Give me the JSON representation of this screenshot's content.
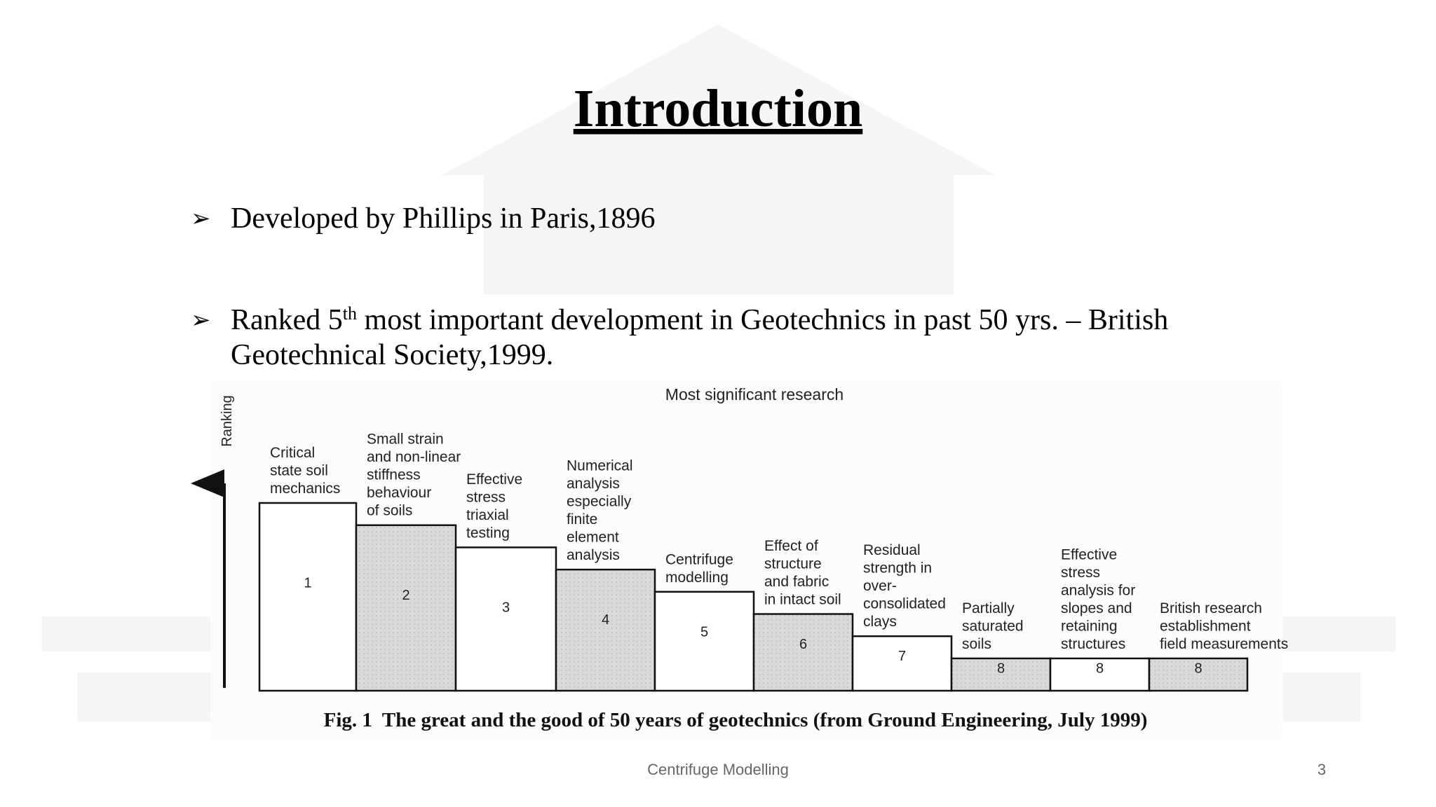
{
  "slide": {
    "title": "Introduction",
    "bullets": [
      {
        "text": "Developed by Phillips in Paris,1896"
      },
      {
        "before": "Ranked 5",
        "sup": "th",
        "after": " most important development in Geotechnics in past 50 yrs. – British",
        "continuation": "Geotechnical Society,1999."
      }
    ],
    "figure": {
      "title": "Most significant research",
      "axis_label": "Ranking",
      "bars": [
        {
          "label": [
            "Critical",
            "state soil",
            "mechanics"
          ],
          "rank": 1
        },
        {
          "label": [
            "Small strain",
            "and non-linear",
            "stiffness",
            "behaviour",
            "of soils"
          ],
          "rank": 2
        },
        {
          "label": [
            "Effective",
            "stress",
            "triaxial",
            "testing"
          ],
          "rank": 3
        },
        {
          "label": [
            "Numerical",
            "analysis",
            "especially",
            "finite",
            "element",
            "analysis"
          ],
          "rank": 4
        },
        {
          "label": [
            "Centrifuge",
            "modelling"
          ],
          "rank": 5
        },
        {
          "label": [
            "Effect of",
            "structure",
            "and fabric",
            "in intact soil"
          ],
          "rank": 6
        },
        {
          "label": [
            "Residual",
            "strength in",
            "over-",
            "consolidated",
            "clays"
          ],
          "rank": 7
        },
        {
          "label": [
            "Partially",
            "saturated",
            "soils"
          ],
          "rank": 8
        },
        {
          "label": [
            "Effective",
            "stress",
            "analysis for",
            "slopes and",
            "retaining",
            "structures"
          ],
          "rank": 8
        },
        {
          "label": [
            "British research",
            "establishment",
            "field measurements"
          ],
          "rank": 8
        }
      ],
      "caption": "Fig. 1  The great and the good of 50 years of geotechnics (from Ground Engineering, July 1999)"
    },
    "footer": "Centrifuge Modelling",
    "page_number": "3"
  }
}
